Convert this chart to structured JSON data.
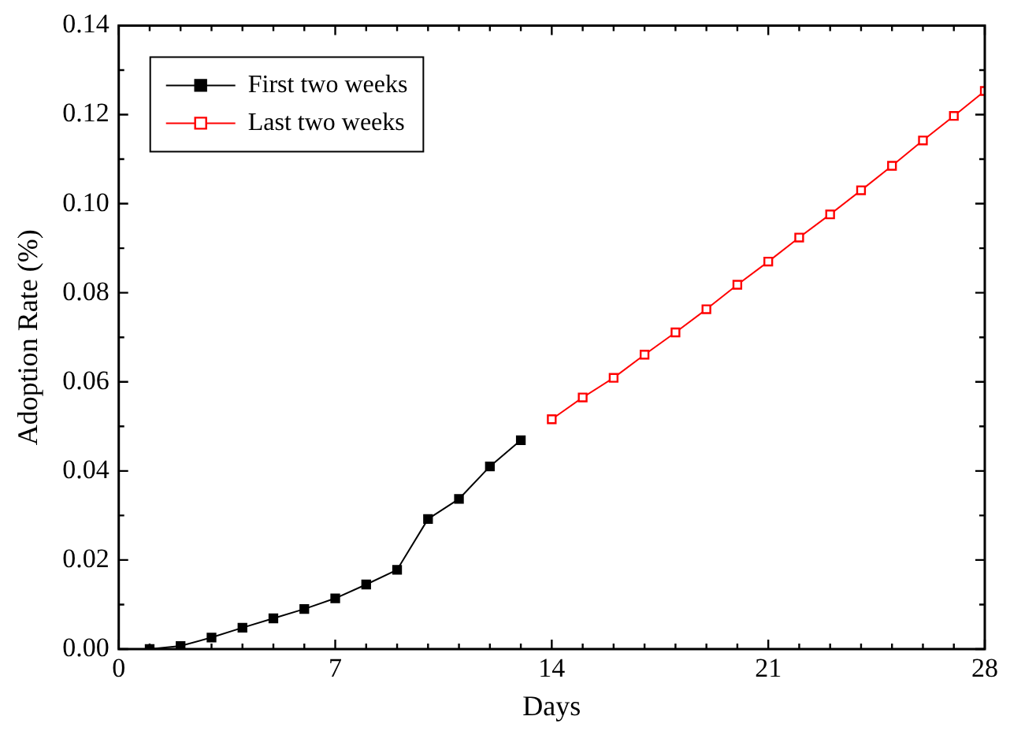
{
  "chart_data": {
    "type": "line",
    "xlabel": "Days",
    "ylabel": "Adoption Rate (%)",
    "xlim": [
      0,
      28
    ],
    "xticks": [
      0,
      7,
      14,
      21,
      28
    ],
    "ylim": [
      0,
      0.14
    ],
    "yticks": [
      {
        "value": 0,
        "label": "0.00"
      },
      {
        "value": 0.02,
        "label": "0.02"
      },
      {
        "value": 0.04,
        "label": "0.04"
      },
      {
        "value": 0.06,
        "label": "0.06"
      },
      {
        "value": 0.08,
        "label": "0.08"
      },
      {
        "value": 0.1,
        "label": "0.10"
      },
      {
        "value": 0.12,
        "label": "0.12"
      },
      {
        "value": 0.14,
        "label": "0.14"
      }
    ],
    "legend": "top left",
    "marker": "square",
    "grid": false,
    "series": [
      {
        "name": "First two weeks",
        "color": "#000000",
        "x": [
          1,
          2,
          3,
          4,
          5,
          6,
          7,
          8,
          9,
          10,
          11,
          12,
          13
        ],
        "values": [
          0.0,
          0.0007,
          0.0026,
          0.0048,
          0.0069,
          0.009,
          0.0114,
          0.0145,
          0.0178,
          0.0292,
          0.0337,
          0.041,
          0.0469
        ]
      },
      {
        "name": "Last two weeks",
        "color": "#ff0000",
        "x": [
          14,
          15,
          16,
          17,
          18,
          19,
          20,
          21,
          22,
          23,
          24,
          25,
          26,
          27,
          28
        ],
        "values": [
          0.0516,
          0.0565,
          0.0609,
          0.0661,
          0.0711,
          0.0763,
          0.0818,
          0.087,
          0.0924,
          0.0976,
          0.103,
          0.1085,
          0.1142,
          0.1197,
          0.1253
        ]
      }
    ]
  }
}
